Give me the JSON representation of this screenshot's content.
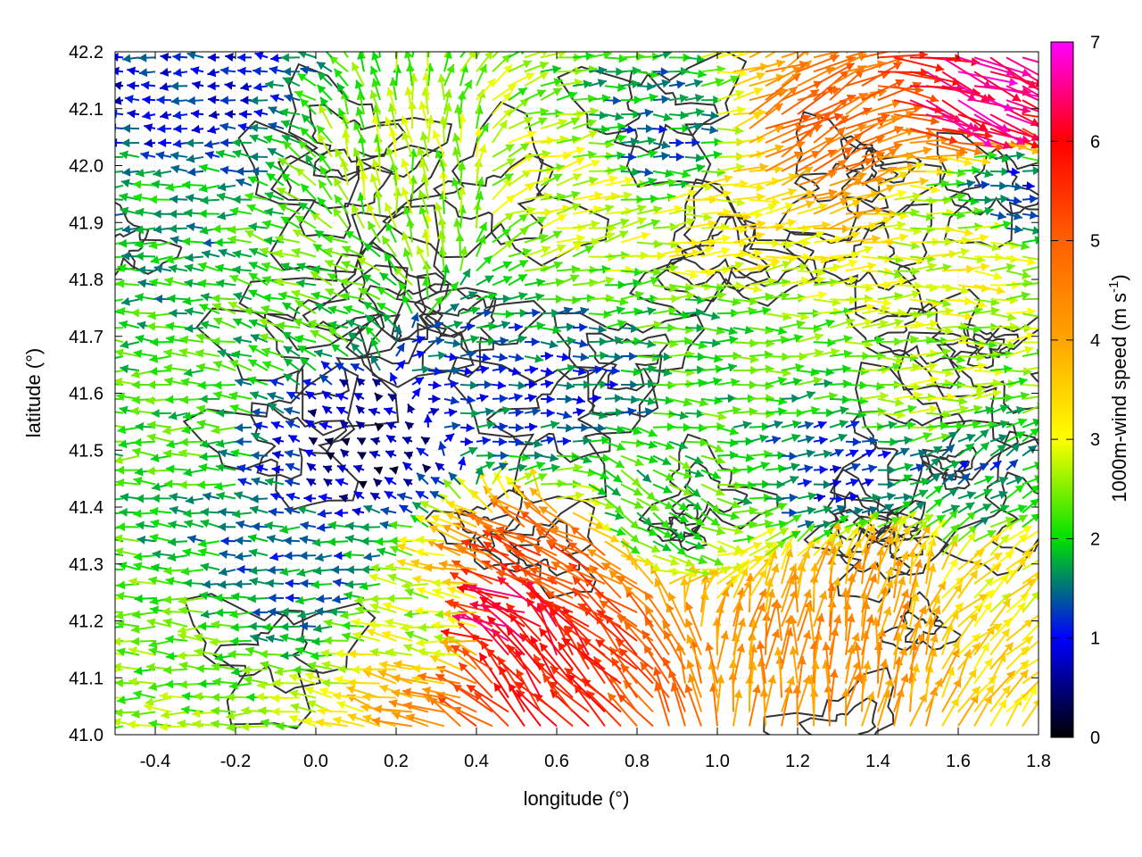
{
  "chart_data": {
    "type": "vector-field",
    "xlabel": "longitude (°)",
    "ylabel": "latitude (°)",
    "xlim": [
      -0.5,
      1.8
    ],
    "ylim": [
      41.0,
      42.2
    ],
    "xticks": [
      {
        "v": -0.4,
        "label": "-0.4"
      },
      {
        "v": -0.2,
        "label": "-0.2"
      },
      {
        "v": 0.0,
        "label": "0.0"
      },
      {
        "v": 0.2,
        "label": "0.2"
      },
      {
        "v": 0.4,
        "label": "0.4"
      },
      {
        "v": 0.6,
        "label": "0.6"
      },
      {
        "v": 0.8,
        "label": "0.8"
      },
      {
        "v": 1.0,
        "label": "1.0"
      },
      {
        "v": 1.2,
        "label": "1.2"
      },
      {
        "v": 1.4,
        "label": "1.4"
      },
      {
        "v": 1.6,
        "label": "1.6"
      },
      {
        "v": 1.8,
        "label": "1.8"
      }
    ],
    "yticks": [
      {
        "v": 41.0,
        "label": "41.0"
      },
      {
        "v": 41.1,
        "label": "41.1"
      },
      {
        "v": 41.2,
        "label": "41.2"
      },
      {
        "v": 41.3,
        "label": "41.3"
      },
      {
        "v": 41.4,
        "label": "41.4"
      },
      {
        "v": 41.5,
        "label": "41.5"
      },
      {
        "v": 41.6,
        "label": "41.6"
      },
      {
        "v": 41.7,
        "label": "41.7"
      },
      {
        "v": 41.8,
        "label": "41.8"
      },
      {
        "v": 41.9,
        "label": "41.9"
      },
      {
        "v": 42.0,
        "label": "42.0"
      },
      {
        "v": 42.1,
        "label": "42.1"
      },
      {
        "v": 42.2,
        "label": "42.2"
      }
    ],
    "grid": true,
    "colorbar": {
      "label_main": "1000m-wind speed (m s",
      "label_sup": "-1",
      "label_close": ")",
      "range": [
        0,
        7
      ],
      "ticks": [
        {
          "v": 0,
          "label": "0"
        },
        {
          "v": 1,
          "label": "1"
        },
        {
          "v": 2,
          "label": "2"
        },
        {
          "v": 3,
          "label": "3"
        },
        {
          "v": 4,
          "label": "4"
        },
        {
          "v": 5,
          "label": "5"
        },
        {
          "v": 6,
          "label": "6"
        },
        {
          "v": 7,
          "label": "7"
        }
      ],
      "stops": [
        {
          "v": 0,
          "color": "#000000"
        },
        {
          "v": 1,
          "color": "#0000ff"
        },
        {
          "v": 2,
          "color": "#00e000"
        },
        {
          "v": 3,
          "color": "#ffff00"
        },
        {
          "v": 4,
          "color": "#ffa500"
        },
        {
          "v": 5,
          "color": "#ff6000"
        },
        {
          "v": 6,
          "color": "#ff0000"
        },
        {
          "v": 7,
          "color": "#ff00ff"
        }
      ]
    },
    "wind_regions": [
      {
        "lon": -0.4,
        "lat": 41.55,
        "speed": 2.1,
        "dir": 180
      },
      {
        "lon": -0.4,
        "lat": 41.1,
        "speed": 2.4,
        "dir": 180
      },
      {
        "lon": -0.35,
        "lat": 41.9,
        "speed": 1.8,
        "dir": 180
      },
      {
        "lon": -0.35,
        "lat": 42.12,
        "speed": 1.0,
        "dir": 180
      },
      {
        "lon": 0.0,
        "lat": 41.3,
        "speed": 1.5,
        "dir": 180
      },
      {
        "lon": 0.0,
        "lat": 41.8,
        "speed": 2.2,
        "dir": 160
      },
      {
        "lon": 0.15,
        "lat": 41.5,
        "speed": 0.5,
        "dir": 150
      },
      {
        "lon": 0.25,
        "lat": 41.95,
        "speed": 2.6,
        "dir": 100
      },
      {
        "lon": 0.4,
        "lat": 41.6,
        "speed": 1.3,
        "dir": 0
      },
      {
        "lon": 0.35,
        "lat": 41.2,
        "speed": 2.6,
        "dir": 175
      },
      {
        "lon": 0.5,
        "lat": 41.2,
        "speed": 6.6,
        "dir": 160
      },
      {
        "lon": 0.55,
        "lat": 41.15,
        "speed": 6.0,
        "dir": 120
      },
      {
        "lon": 0.62,
        "lat": 41.28,
        "speed": 5.2,
        "dir": 150
      },
      {
        "lon": 0.6,
        "lat": 41.95,
        "speed": 2.8,
        "dir": 15
      },
      {
        "lon": 0.6,
        "lat": 41.6,
        "speed": 1.3,
        "dir": 0
      },
      {
        "lon": 0.8,
        "lat": 41.4,
        "speed": 2.0,
        "dir": 330
      },
      {
        "lon": 0.85,
        "lat": 42.05,
        "speed": 1.5,
        "dir": 0
      },
      {
        "lon": 0.95,
        "lat": 41.7,
        "speed": 2.1,
        "dir": 0
      },
      {
        "lon": 1.0,
        "lat": 41.9,
        "speed": 3.2,
        "dir": 5
      },
      {
        "lon": 1.2,
        "lat": 42.05,
        "speed": 4.8,
        "dir": 30
      },
      {
        "lon": 1.3,
        "lat": 41.15,
        "speed": 4.4,
        "dir": 85
      },
      {
        "lon": 1.4,
        "lat": 41.25,
        "speed": 4.0,
        "dir": 75
      },
      {
        "lon": 1.3,
        "lat": 41.45,
        "speed": 1.2,
        "dir": 10
      },
      {
        "lon": 1.5,
        "lat": 41.6,
        "speed": 2.6,
        "dir": 0
      },
      {
        "lon": 1.6,
        "lat": 41.85,
        "speed": 3.0,
        "dir": 0
      },
      {
        "lon": 1.65,
        "lat": 42.12,
        "speed": 6.6,
        "dir": 340
      },
      {
        "lon": 1.7,
        "lat": 41.95,
        "speed": 1.2,
        "dir": 0
      },
      {
        "lon": 1.7,
        "lat": 41.25,
        "speed": 3.2,
        "dir": 40
      },
      {
        "lon": 1.6,
        "lat": 41.45,
        "speed": 1.5,
        "dir": 30
      }
    ],
    "vector_spacing": [
      0.04,
      0.025
    ]
  }
}
